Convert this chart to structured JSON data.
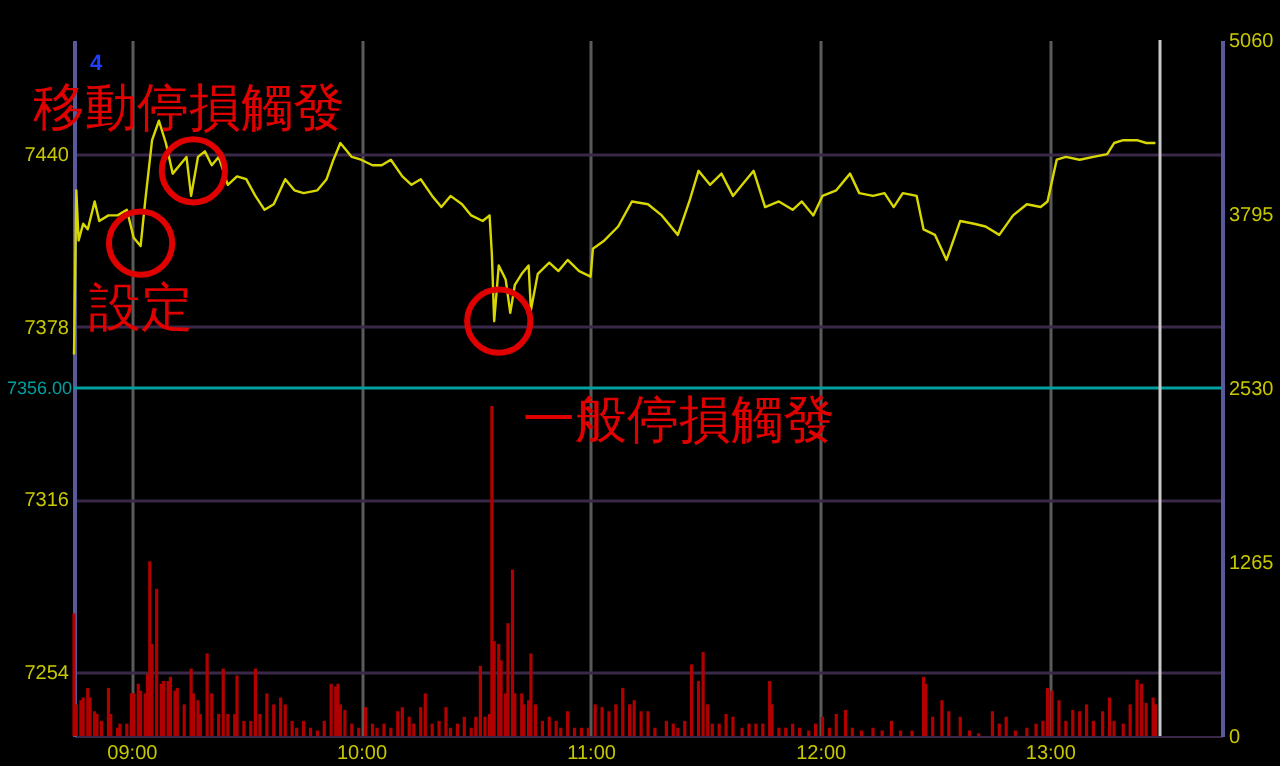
{
  "chart_data": {
    "type": "line",
    "xlim": [
      8.75,
      13.75
    ],
    "xticks": [
      {
        "value": 9,
        "label": "09:00"
      },
      {
        "value": 10,
        "label": "10:00"
      },
      {
        "value": 11,
        "label": "11:00"
      },
      {
        "value": 12,
        "label": "12:00"
      },
      {
        "value": 13,
        "label": "13:00"
      }
    ],
    "ylim": [
      7231,
      7481
    ],
    "yticks": [
      7254,
      7316,
      7378,
      7440
    ],
    "y2lim": [
      0,
      5060
    ],
    "y2ticks": [
      0,
      1265,
      2530,
      3795,
      5060
    ],
    "grid": true,
    "series": [
      {
        "type": "bar",
        "axis": "y2",
        "color": "#b00000",
        "x": [
          8.75,
          8.76,
          8.78,
          8.79,
          8.81,
          8.82,
          8.84,
          8.85,
          8.87,
          8.9,
          8.91,
          8.94,
          8.95,
          8.98,
          9.0,
          9.01,
          9.03,
          9.04,
          9.06,
          9.07,
          9.08,
          9.09,
          9.11,
          9.13,
          9.14,
          9.16,
          9.17,
          9.19,
          9.2,
          9.23,
          9.26,
          9.27,
          9.29,
          9.3,
          9.33,
          9.35,
          9.38,
          9.4,
          9.42,
          9.45,
          9.46,
          9.49,
          9.52,
          9.54,
          9.56,
          9.59,
          9.62,
          9.65,
          9.67,
          9.7,
          9.72,
          9.75,
          9.78,
          9.81,
          9.84,
          9.87,
          9.89,
          9.9,
          9.91,
          9.93,
          9.96,
          9.99,
          10.02,
          10.05,
          10.07,
          10.1,
          10.13,
          10.16,
          10.18,
          10.21,
          10.23,
          10.26,
          10.28,
          10.31,
          10.34,
          10.37,
          10.39,
          10.42,
          10.45,
          10.48,
          10.5,
          10.52,
          10.54,
          10.56,
          10.57,
          10.58,
          10.6,
          10.61,
          10.63,
          10.64,
          10.66,
          10.67,
          10.7,
          10.71,
          10.73,
          10.74,
          10.76,
          10.79,
          10.82,
          10.85,
          10.87,
          10.9,
          10.93,
          10.96,
          10.99,
          11.02,
          11.05,
          11.08,
          11.11,
          11.14,
          11.17,
          11.19,
          11.22,
          11.25,
          11.28,
          11.33,
          11.36,
          11.38,
          11.41,
          11.44,
          11.47,
          11.49,
          11.51,
          11.53,
          11.56,
          11.59,
          11.62,
          11.66,
          11.69,
          11.72,
          11.75,
          11.78,
          11.79,
          11.82,
          11.85,
          11.88,
          11.91,
          11.95,
          11.98,
          12.01,
          12.04,
          12.07,
          12.11,
          12.14,
          12.18,
          12.23,
          12.27,
          12.31,
          12.35,
          12.4,
          12.45,
          12.46,
          12.49,
          12.53,
          12.56,
          12.61,
          12.65,
          12.69,
          12.75,
          12.78,
          12.81,
          12.85,
          12.9,
          12.94,
          12.97,
          12.99,
          13.01,
          13.04,
          13.07,
          13.1,
          13.13,
          13.16,
          13.19,
          13.23,
          13.26,
          13.28,
          13.32,
          13.35,
          13.38,
          13.4,
          13.42,
          13.45,
          13.46
        ],
        "values": [
          890,
          230,
          260,
          280,
          350,
          280,
          180,
          160,
          110,
          350,
          160,
          60,
          90,
          90,
          310,
          310,
          380,
          330,
          310,
          450,
          1270,
          670,
          1070,
          380,
          400,
          400,
          430,
          330,
          350,
          230,
          490,
          310,
          260,
          160,
          600,
          310,
          160,
          490,
          160,
          160,
          440,
          110,
          110,
          490,
          160,
          310,
          230,
          280,
          230,
          110,
          60,
          110,
          60,
          40,
          110,
          380,
          360,
          380,
          230,
          190,
          90,
          60,
          210,
          90,
          60,
          90,
          60,
          180,
          210,
          140,
          90,
          210,
          310,
          90,
          110,
          210,
          60,
          90,
          140,
          60,
          140,
          510,
          140,
          160,
          2400,
          690,
          670,
          550,
          310,
          820,
          1210,
          310,
          310,
          230,
          260,
          600,
          230,
          110,
          140,
          110,
          60,
          180,
          60,
          60,
          60,
          230,
          210,
          180,
          230,
          350,
          230,
          260,
          180,
          180,
          60,
          110,
          90,
          60,
          110,
          520,
          400,
          610,
          230,
          90,
          90,
          160,
          140,
          60,
          90,
          90,
          90,
          400,
          230,
          60,
          60,
          90,
          60,
          40,
          90,
          140,
          60,
          160,
          190,
          60,
          40,
          60,
          40,
          110,
          40,
          40,
          430,
          380,
          140,
          260,
          180,
          140,
          40,
          20,
          180,
          90,
          140,
          40,
          60,
          90,
          110,
          350,
          330,
          260,
          110,
          190,
          180,
          230,
          110,
          180,
          280,
          110,
          90,
          230,
          410,
          380,
          240,
          280,
          230
        ]
      },
      {
        "color": "#d8d800",
        "x": [
          8.75,
          8.76,
          8.77,
          8.79,
          8.81,
          8.84,
          8.86,
          8.9,
          8.94,
          8.98,
          9.01,
          9.04,
          9.06,
          9.09,
          9.12,
          9.15,
          9.18,
          9.21,
          9.24,
          9.26,
          9.29,
          9.32,
          9.35,
          9.38,
          9.42,
          9.46,
          9.5,
          9.54,
          9.58,
          9.62,
          9.67,
          9.71,
          9.75,
          9.81,
          9.85,
          9.88,
          9.91,
          9.96,
          10.0,
          10.05,
          10.09,
          10.13,
          10.18,
          10.22,
          10.26,
          10.31,
          10.35,
          10.39,
          10.44,
          10.48,
          10.53,
          10.56,
          10.57,
          10.58,
          10.6,
          10.63,
          10.65,
          10.67,
          10.7,
          10.73,
          10.74,
          10.77,
          10.82,
          10.86,
          10.9,
          10.95,
          11.0,
          11.01,
          11.06,
          11.12,
          11.18,
          11.25,
          11.31,
          11.38,
          11.43,
          11.47,
          11.52,
          11.57,
          11.62,
          11.66,
          11.71,
          11.76,
          11.82,
          11.88,
          11.92,
          11.97,
          12.01,
          12.07,
          12.13,
          12.17,
          12.23,
          12.28,
          12.32,
          12.36,
          12.42,
          12.45,
          12.5,
          12.55,
          12.61,
          12.67,
          12.72,
          12.78,
          12.84,
          12.9,
          12.96,
          12.99,
          13.03,
          13.07,
          13.13,
          13.19,
          13.25,
          13.28,
          13.32,
          13.38,
          13.42,
          13.46
        ],
        "values": [
          7368,
          7427,
          7409,
          7415,
          7413,
          7423,
          7416,
          7418,
          7418,
          7420,
          7410,
          7407,
          7423,
          7445,
          7452,
          7444,
          7433,
          7436,
          7439,
          7425,
          7439,
          7441,
          7436,
          7439,
          7429,
          7432,
          7431,
          7425,
          7420,
          7422,
          7431,
          7427,
          7426,
          7427,
          7431,
          7438,
          7444,
          7439,
          7438,
          7436,
          7436,
          7438,
          7432,
          7429,
          7431,
          7425,
          7421,
          7425,
          7422,
          7418,
          7416,
          7418,
          7404,
          7380,
          7400,
          7395,
          7383,
          7393,
          7397,
          7400,
          7384,
          7397,
          7401,
          7398,
          7402,
          7398,
          7396,
          7406,
          7409,
          7414,
          7423,
          7422,
          7418,
          7411,
          7423,
          7434,
          7429,
          7433,
          7425,
          7429,
          7434,
          7421,
          7423,
          7420,
          7423,
          7418,
          7425,
          7427,
          7433,
          7426,
          7425,
          7426,
          7421,
          7426,
          7425,
          7413,
          7411,
          7402,
          7416,
          7415,
          7414,
          7411,
          7418,
          7422,
          7421,
          7423,
          7438,
          7439,
          7438,
          7439,
          7440,
          7444,
          7445,
          7445,
          7444,
          7444
        ]
      }
    ],
    "ref_lines": [
      {
        "axis": "y",
        "value": 7356,
        "label": "7356.00",
        "color": "#00a0a0"
      },
      {
        "axis": "x",
        "value": 13.48,
        "label": null,
        "color": "#c8c8c8"
      }
    ],
    "annotations": [
      "4",
      {
        "text": "移動停損觸發",
        "x": 9.27,
        "y": 7434
      },
      {
        "text": "設定",
        "x": 9.04,
        "y": 7408
      },
      {
        "text": "一般停損觸發",
        "x": 10.6,
        "y": 7380
      }
    ]
  }
}
